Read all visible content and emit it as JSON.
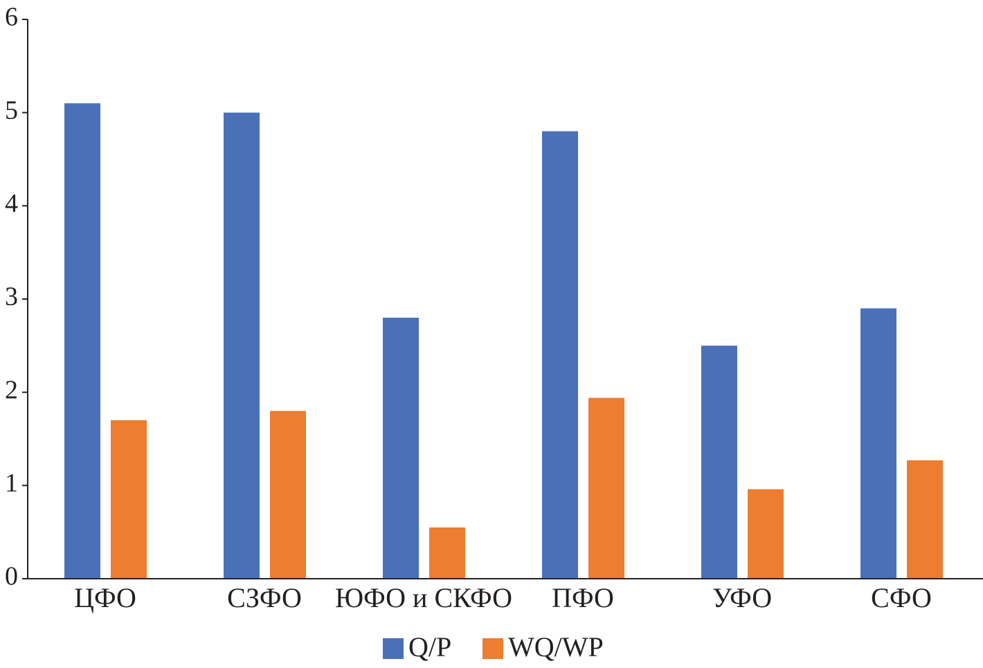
{
  "chart_data": {
    "type": "bar",
    "categories": [
      "ЦФО",
      "СЗФО",
      "ЮФО и СКФО",
      "ПФО",
      "УФО",
      "СФО"
    ],
    "series": [
      {
        "name": "Q/P",
        "color": "#4a71b8",
        "values": [
          5.1,
          5.0,
          2.8,
          4.8,
          2.5,
          2.9
        ]
      },
      {
        "name": "WQ/WP",
        "color": "#ed7d31",
        "values": [
          1.7,
          1.8,
          0.55,
          1.94,
          0.96,
          1.27
        ]
      }
    ],
    "ylim": [
      0,
      6
    ],
    "yticks": [
      0,
      1,
      2,
      3,
      4,
      5,
      6
    ],
    "legend": "bottom"
  }
}
